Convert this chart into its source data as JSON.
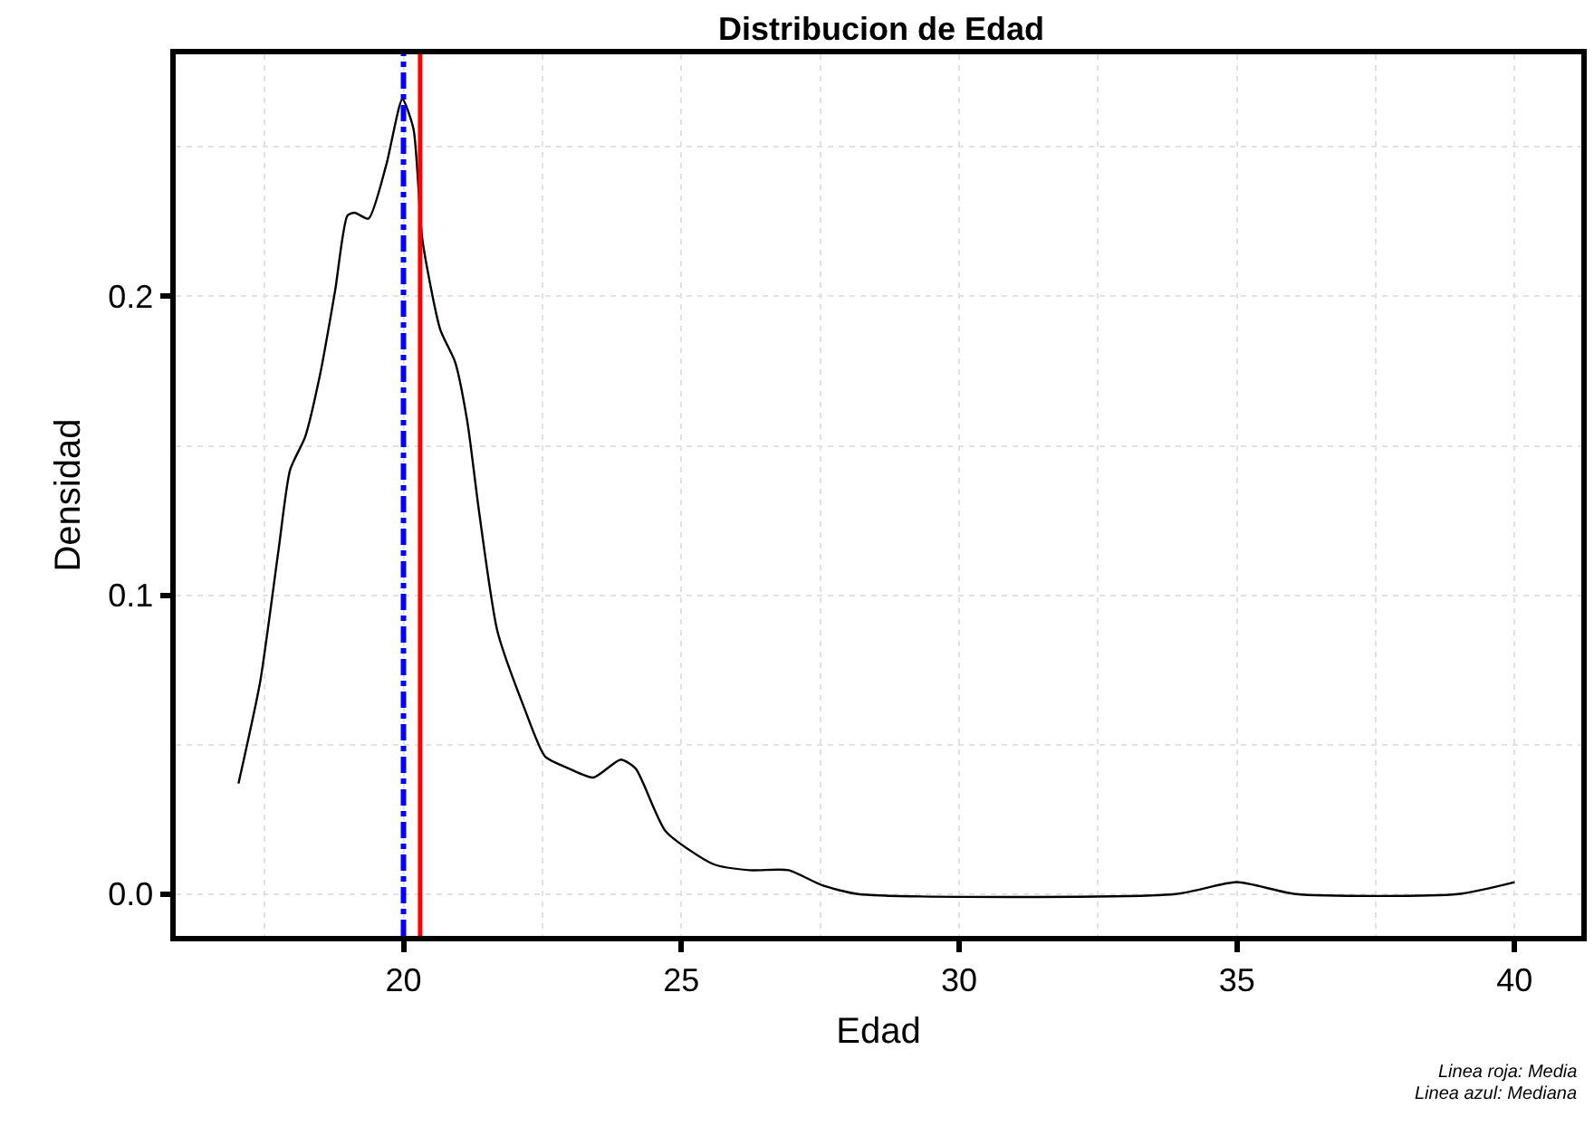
{
  "chart_data": {
    "type": "line",
    "title": "Distribucion de Edad",
    "xlabel": "Edad",
    "ylabel": "Densidad",
    "series": [
      {
        "color": "#000000",
        "x": [
          17.03,
          17.42,
          17.75,
          17.96,
          18.23,
          18.5,
          18.77,
          18.99,
          19.12,
          19.37,
          19.69,
          19.98,
          20.18,
          20.34,
          20.66,
          20.93,
          21.15,
          21.36,
          21.69,
          22.18,
          22.55,
          22.98,
          23.42,
          23.91,
          24.18,
          24.72,
          25.58,
          26.23,
          26.93,
          27.53,
          28.18,
          33.9,
          35.0,
          36.06,
          38.98,
          40.0
        ],
        "values": [
          0.037,
          0.071,
          0.115,
          0.142,
          0.153,
          0.174,
          0.202,
          0.227,
          0.228,
          0.226,
          0.244,
          0.266,
          0.256,
          0.219,
          0.189,
          0.178,
          0.158,
          0.128,
          0.088,
          0.062,
          0.046,
          0.042,
          0.039,
          0.045,
          0.042,
          0.021,
          0.01,
          0.008,
          0.008,
          0.003,
          0.0,
          0.0,
          0.004,
          0.0,
          0.0,
          0.004
        ]
      }
    ],
    "xlim": [
      15.9,
      41.2
    ],
    "ylim": [
      -0.014,
      0.281
    ],
    "xticks": [
      20,
      25,
      30,
      35,
      40
    ],
    "yticks": [
      {
        "value": 0,
        "label": "0.0"
      },
      {
        "value": 0.1,
        "label": "0.1"
      },
      {
        "value": 0.2,
        "label": "0.2"
      }
    ],
    "ref_lines": [
      {
        "axis": "x",
        "value": 20.3,
        "color": "#ff0000",
        "line_style": "solid"
      },
      {
        "axis": "x",
        "value": 20.0,
        "color": "#0000ff",
        "line_style": "dashdot"
      }
    ],
    "annotations": [
      "Linea roja: Media",
      "Linea azul: Mediana"
    ],
    "grid": true,
    "line_style": "solid",
    "marker": "none"
  }
}
